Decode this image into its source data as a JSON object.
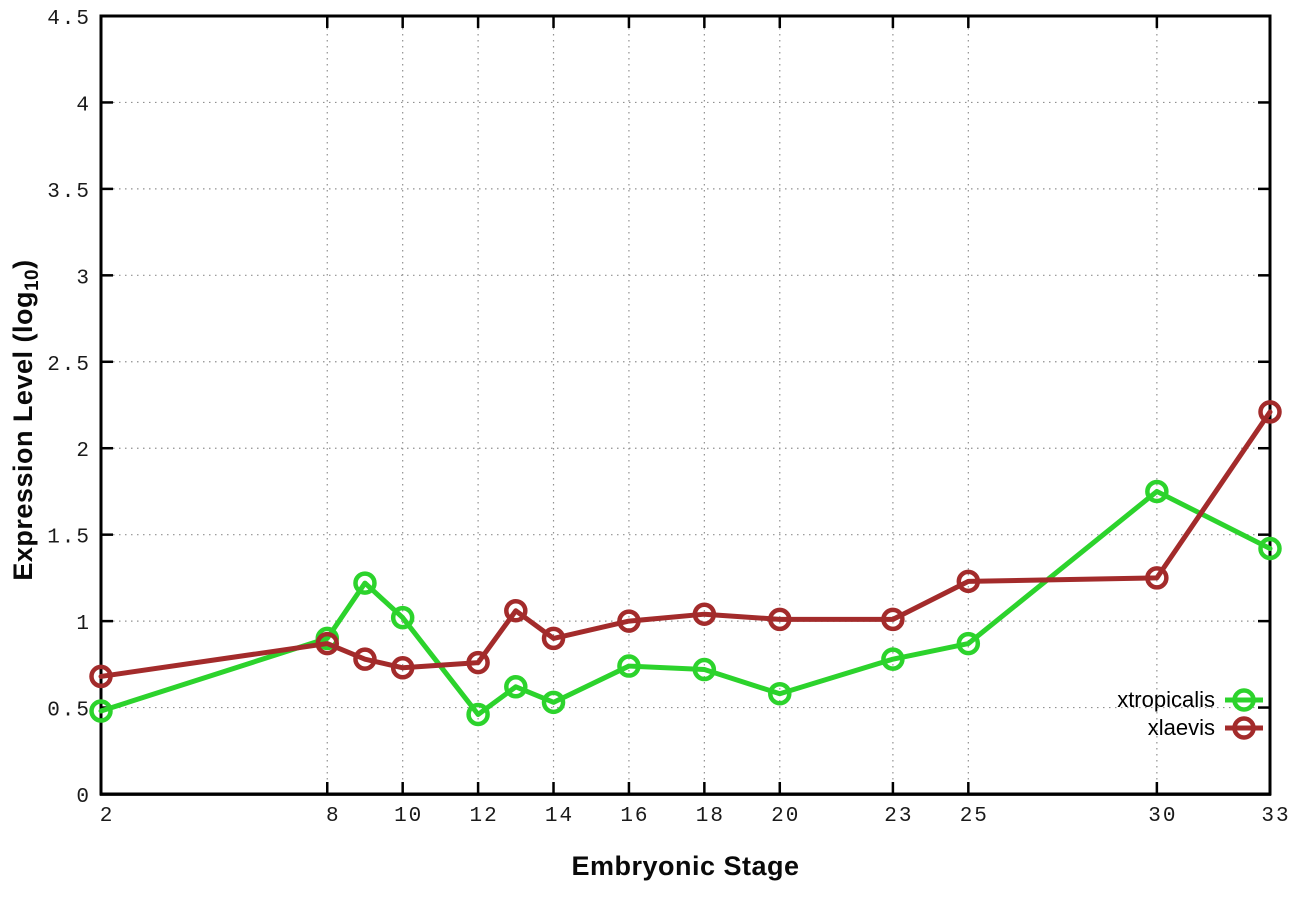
{
  "figure": {
    "background": "#ffffff",
    "ylabel_main": "Expression Level (log",
    "ylabel_sub": "10",
    "ylabel_close": ")"
  },
  "chart_data": {
    "type": "line",
    "title": "",
    "xlabel": "Embryonic Stage",
    "ylabel": "Expression Level (log10)",
    "xlim": [
      2,
      33
    ],
    "ylim": [
      0,
      4.5
    ],
    "grid": true,
    "legend_position": "bottom-right-inside",
    "x": [
      2,
      8,
      9,
      10,
      12,
      13,
      14,
      16,
      18,
      20,
      23,
      25,
      30,
      33
    ],
    "x_tick_labels": [
      2,
      8,
      10,
      12,
      14,
      16,
      18,
      20,
      23,
      25,
      30,
      33
    ],
    "y_ticks": [
      0,
      0.5,
      1,
      1.5,
      2,
      2.5,
      3,
      3.5,
      4,
      4.5
    ],
    "series": [
      {
        "name": "xtropicalis",
        "color": "#2cd32c",
        "marker": "open-circle",
        "values": [
          0.48,
          0.9,
          1.22,
          1.02,
          0.46,
          0.62,
          0.53,
          0.74,
          0.72,
          0.58,
          0.78,
          0.87,
          1.75,
          1.42
        ]
      },
      {
        "name": "xlaevis",
        "color": "#a32b2b",
        "marker": "open-circle",
        "values": [
          0.68,
          0.87,
          0.78,
          0.73,
          0.76,
          1.06,
          0.9,
          1.0,
          1.04,
          1.01,
          1.01,
          1.23,
          1.25,
          2.21
        ]
      }
    ]
  },
  "style": {
    "grid_color": "#909090",
    "axis_color": "#000000",
    "tick_label_color": "#1a1a1a"
  }
}
